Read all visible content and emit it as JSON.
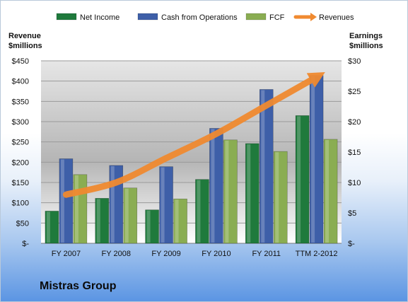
{
  "chart_data": {
    "type": "bar",
    "title": "Mistras Group",
    "categories": [
      "FY 2007",
      "FY 2008",
      "FY 2009",
      "FY 2010",
      "FY 2011",
      "TTM 2-2012"
    ],
    "series": [
      {
        "name": "Net Income",
        "axis": "right",
        "color": "#1f7a3c",
        "values": [
          5.3,
          7.4,
          5.5,
          10.5,
          16.4,
          21.0
        ]
      },
      {
        "name": "Cash from Operations",
        "axis": "right",
        "color": "#3e5fa8",
        "values": [
          13.9,
          12.8,
          12.6,
          18.9,
          25.3,
          27.6
        ]
      },
      {
        "name": "FCF",
        "axis": "right",
        "color": "#8aad52",
        "values": [
          11.3,
          9.1,
          7.3,
          17.0,
          15.1,
          17.1
        ]
      },
      {
        "name": "Revenues",
        "type": "line",
        "axis": "left",
        "color": "#f08a30",
        "values": [
          120,
          150,
          210,
          270,
          340,
          410
        ]
      }
    ],
    "y_left": {
      "label_line1": "Revenue",
      "label_line2": "$millions",
      "lim": [
        0,
        450
      ],
      "ticks": [
        "$-",
        "$50",
        "$100",
        "$150",
        "$200",
        "$250",
        "$300",
        "$350",
        "$400",
        "$450"
      ]
    },
    "y_right": {
      "label_line1": "Earnings",
      "label_line2": "$millions",
      "lim": [
        0,
        30
      ],
      "ticks": [
        "$-",
        "$5",
        "$10",
        "$15",
        "$20",
        "$25",
        "$30"
      ]
    },
    "legend": {
      "position": "top"
    }
  }
}
